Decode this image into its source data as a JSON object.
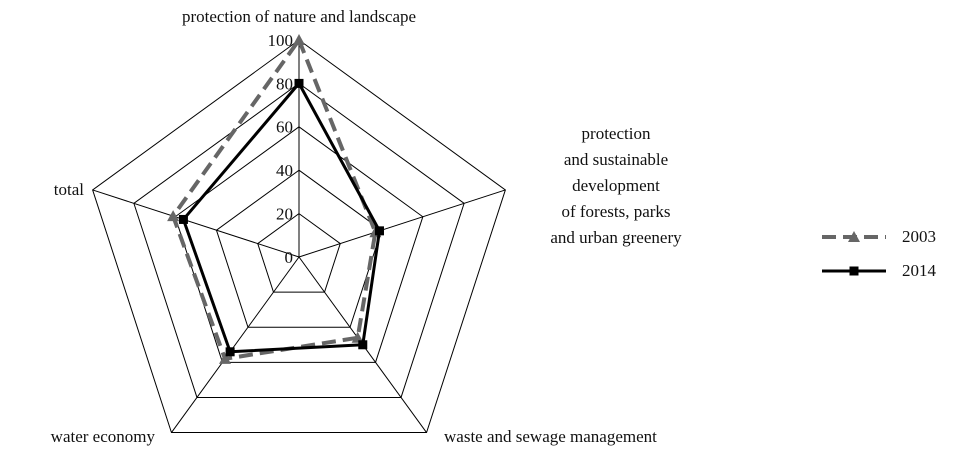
{
  "chart_data": {
    "type": "radar",
    "categories": [
      "protection of nature and landscape",
      "protection\nand sustainable\ndevelopment\nof forests, parks\nand urban greenery",
      "waste and sewage management",
      "water economy",
      "total"
    ],
    "series": [
      {
        "name": "2003",
        "color": "#666666",
        "values": [
          100,
          37,
          46,
          58,
          61
        ]
      },
      {
        "name": "2014",
        "color": "#000000",
        "values": [
          80,
          39,
          50,
          54,
          56
        ]
      }
    ],
    "ylim": [
      0,
      100
    ],
    "yticks": [
      0,
      20,
      40,
      60,
      80,
      100
    ],
    "grid": true,
    "legend": "right"
  }
}
